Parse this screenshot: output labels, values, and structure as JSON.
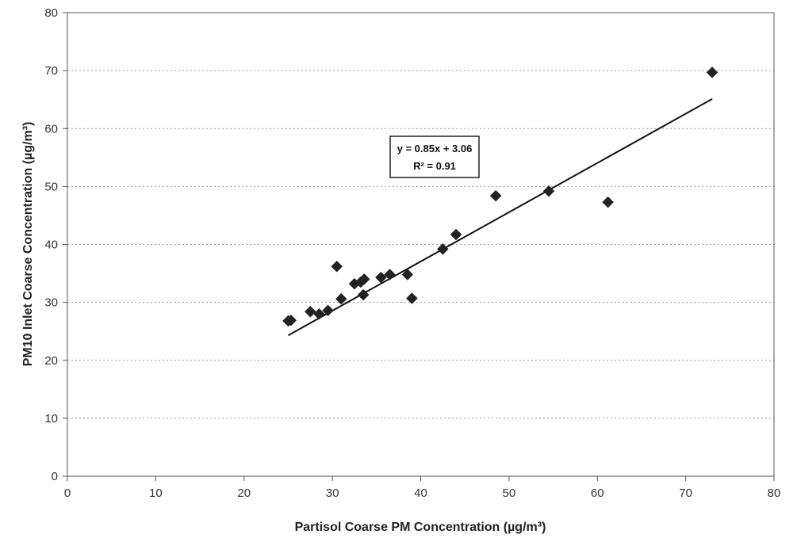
{
  "chart_data": {
    "type": "scatter",
    "xlabel": "Partisol Coarse PM Concentration (µg/m³)",
    "ylabel": "PM10 Inlet Coarse Concentration (µg/m³)",
    "xlim": [
      0,
      80
    ],
    "ylim": [
      0,
      80
    ],
    "x_ticks": [
      0,
      10,
      20,
      30,
      40,
      50,
      60,
      70,
      80
    ],
    "y_ticks": [
      0,
      10,
      20,
      30,
      40,
      50,
      60,
      70,
      80
    ],
    "grid": "horizontal dashed",
    "marker": "diamond",
    "marker_color": "#222222",
    "points": [
      {
        "x": 25.0,
        "y": 26.8
      },
      {
        "x": 25.3,
        "y": 26.9
      },
      {
        "x": 27.5,
        "y": 28.4
      },
      {
        "x": 28.5,
        "y": 28.0
      },
      {
        "x": 29.5,
        "y": 28.6
      },
      {
        "x": 30.5,
        "y": 36.2
      },
      {
        "x": 31.0,
        "y": 30.6
      },
      {
        "x": 32.5,
        "y": 33.2
      },
      {
        "x": 33.2,
        "y": 33.5
      },
      {
        "x": 33.5,
        "y": 31.3
      },
      {
        "x": 33.6,
        "y": 34.0
      },
      {
        "x": 35.5,
        "y": 34.3
      },
      {
        "x": 36.5,
        "y": 34.8
      },
      {
        "x": 38.5,
        "y": 34.8
      },
      {
        "x": 39.0,
        "y": 30.7
      },
      {
        "x": 42.5,
        "y": 39.2
      },
      {
        "x": 44.0,
        "y": 41.7
      },
      {
        "x": 48.5,
        "y": 48.4
      },
      {
        "x": 54.5,
        "y": 49.2
      },
      {
        "x": 61.2,
        "y": 47.3
      },
      {
        "x": 73.0,
        "y": 69.7
      }
    ],
    "trendline": {
      "slope": 0.85,
      "intercept": 3.06,
      "x_range": [
        25,
        73
      ],
      "equation": "y = 0.85x + 3.06",
      "r2_label": "R² = 0.91"
    }
  }
}
